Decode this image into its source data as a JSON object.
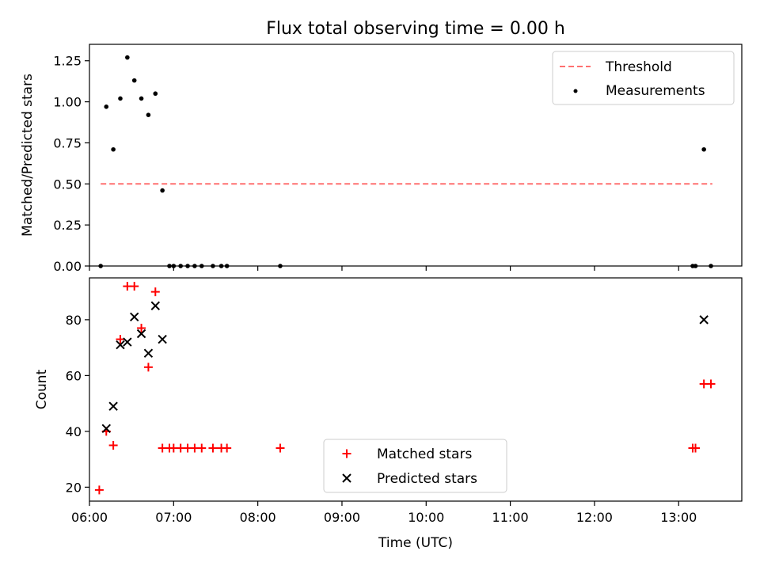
{
  "figure": {
    "title": "Flux total observing time = 0.00 h",
    "xlabel": "Time (UTC)"
  },
  "chart_data": [
    {
      "type": "scatter",
      "panel": "top",
      "ylabel": "Matched/Predicted stars",
      "xlim": [
        "06:00",
        "13:45"
      ],
      "ylim": [
        0,
        1.35
      ],
      "yticks": [
        "0.00",
        "0.25",
        "0.50",
        "0.75",
        "1.00",
        "1.25"
      ],
      "grid": false,
      "legend_position": "upper right",
      "threshold": {
        "name": "Threshold",
        "y": 0.5,
        "x_start": "06:08",
        "x_end": "13:24",
        "color": "#ff7070",
        "style": "dashed"
      },
      "series": [
        {
          "name": "Measurements",
          "marker": "dot",
          "color": "#000000",
          "x": [
            "06:08",
            "06:12",
            "06:17",
            "06:22",
            "06:27",
            "06:32",
            "06:37",
            "06:42",
            "06:47",
            "06:52",
            "06:57",
            "07:00",
            "07:05",
            "07:10",
            "07:15",
            "07:20",
            "07:28",
            "07:34",
            "07:38",
            "08:16",
            "13:10",
            "13:12",
            "13:18",
            "13:23"
          ],
          "y": [
            0.0,
            0.97,
            0.71,
            1.02,
            1.27,
            1.13,
            1.02,
            0.92,
            1.05,
            0.46,
            0.0,
            0.0,
            0.0,
            0.0,
            0.0,
            0.0,
            0.0,
            0.0,
            0.0,
            0.0,
            0.0,
            0.0,
            0.71,
            0.0
          ]
        }
      ]
    },
    {
      "type": "scatter",
      "panel": "bottom",
      "ylabel": "Count",
      "xlim": [
        "06:00",
        "13:45"
      ],
      "xticks": [
        "06:00",
        "07:00",
        "08:00",
        "09:00",
        "10:00",
        "11:00",
        "12:00",
        "13:00"
      ],
      "ylim": [
        15,
        95
      ],
      "yticks": [
        20,
        40,
        60,
        80
      ],
      "grid": false,
      "legend_position": "lower center",
      "series": [
        {
          "name": "Matched stars",
          "marker": "plus",
          "color": "#ff0000",
          "x": [
            "06:07",
            "06:12",
            "06:17",
            "06:22",
            "06:27",
            "06:32",
            "06:37",
            "06:42",
            "06:47",
            "06:52",
            "06:57",
            "07:00",
            "07:05",
            "07:10",
            "07:15",
            "07:20",
            "07:28",
            "07:34",
            "07:38",
            "08:16",
            "13:10",
            "13:12",
            "13:18",
            "13:23"
          ],
          "y": [
            19,
            40,
            35,
            73,
            92,
            92,
            77,
            63,
            90,
            34,
            34,
            34,
            34,
            34,
            34,
            34,
            34,
            34,
            34,
            34,
            34,
            34,
            57,
            57
          ]
        },
        {
          "name": "Predicted stars",
          "marker": "x",
          "color": "#000000",
          "x": [
            "06:12",
            "06:17",
            "06:22",
            "06:27",
            "06:32",
            "06:37",
            "06:42",
            "06:47",
            "06:52",
            "13:18"
          ],
          "y": [
            41,
            49,
            71,
            72,
            81,
            75,
            68,
            85,
            73,
            80
          ]
        }
      ]
    }
  ]
}
